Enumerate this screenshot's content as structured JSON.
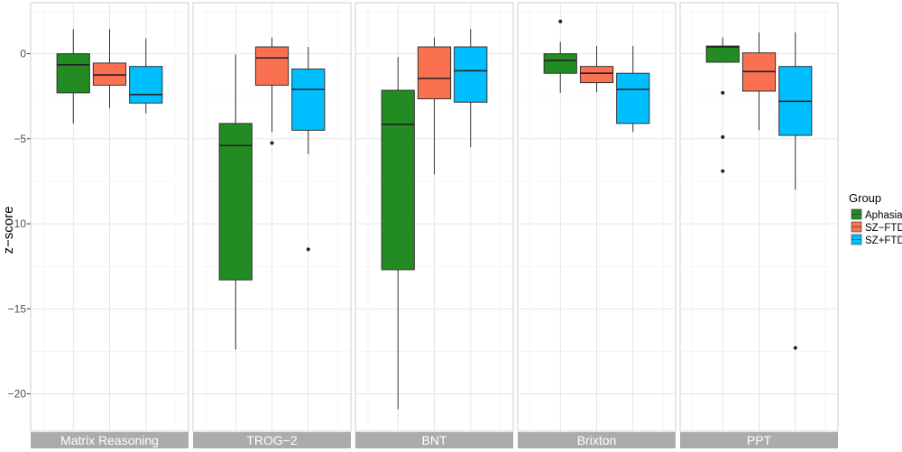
{
  "chart_data": {
    "type": "boxplot",
    "ylabel": "z−score",
    "ylim": [
      -22.2,
      3.0
    ],
    "yticks": [
      0,
      -5,
      -10,
      -15,
      -20
    ],
    "ytick_labels": [
      "0",
      "−5",
      "−10",
      "−15",
      "−20"
    ],
    "grid": true,
    "legend": {
      "title": "Group",
      "placement": "right",
      "entries": [
        {
          "name": "Aphasia",
          "color": "#228B22"
        },
        {
          "name": "SZ−FTD",
          "color": "#FA7152"
        },
        {
          "name": "SZ+FTD",
          "color": "#00BFFF"
        }
      ]
    },
    "panels": [
      {
        "label": "Matrix Reasoning",
        "boxes": [
          {
            "group": "Aphasia",
            "whisker_low": -4.1,
            "q1": -2.3,
            "median": -0.65,
            "q3": 0.0,
            "whisker_high": 1.45,
            "outliers": []
          },
          {
            "group": "SZ−FTD",
            "whisker_low": -3.2,
            "q1": -1.85,
            "median": -1.25,
            "q3": -0.55,
            "whisker_high": 1.45,
            "outliers": []
          },
          {
            "group": "SZ+FTD",
            "whisker_low": -3.5,
            "q1": -2.9,
            "median": -2.4,
            "q3": -0.75,
            "whisker_high": 0.9,
            "outliers": []
          }
        ]
      },
      {
        "label": "TROG−2",
        "boxes": [
          {
            "group": "Aphasia",
            "whisker_low": -17.4,
            "q1": -13.3,
            "median": -5.4,
            "q3": -4.1,
            "whisker_high": -0.05,
            "outliers": []
          },
          {
            "group": "SZ−FTD",
            "whisker_low": -4.6,
            "q1": -1.85,
            "median": -0.25,
            "q3": 0.4,
            "whisker_high": 0.95,
            "outliers": [
              -5.25
            ]
          },
          {
            "group": "SZ+FTD",
            "whisker_low": -5.9,
            "q1": -4.5,
            "median": -2.1,
            "q3": -0.9,
            "whisker_high": 0.4,
            "outliers": [
              -11.5
            ]
          }
        ]
      },
      {
        "label": "BNT",
        "boxes": [
          {
            "group": "Aphasia",
            "whisker_low": -20.9,
            "q1": -12.7,
            "median": -4.15,
            "q3": -2.15,
            "whisker_high": -0.2,
            "outliers": []
          },
          {
            "group": "SZ−FTD",
            "whisker_low": -7.1,
            "q1": -2.65,
            "median": -1.45,
            "q3": 0.4,
            "whisker_high": 0.95,
            "outliers": []
          },
          {
            "group": "SZ+FTD",
            "whisker_low": -5.5,
            "q1": -2.85,
            "median": -1.0,
            "q3": 0.4,
            "whisker_high": 1.45,
            "outliers": []
          }
        ]
      },
      {
        "label": "Brixton",
        "boxes": [
          {
            "group": "Aphasia",
            "whisker_low": -2.3,
            "q1": -1.15,
            "median": -0.4,
            "q3": 0.0,
            "whisker_high": 0.7,
            "outliers": [
              1.9
            ]
          },
          {
            "group": "SZ−FTD",
            "whisker_low": -2.25,
            "q1": -1.7,
            "median": -1.15,
            "q3": -0.75,
            "whisker_high": 0.45,
            "outliers": []
          },
          {
            "group": "SZ+FTD",
            "whisker_low": -4.6,
            "q1": -4.1,
            "median": -2.1,
            "q3": -1.15,
            "whisker_high": 0.45,
            "outliers": []
          }
        ]
      },
      {
        "label": "PPT",
        "boxes": [
          {
            "group": "Aphasia",
            "whisker_low": -0.5,
            "q1": -0.5,
            "median": 0.4,
            "q3": 0.45,
            "whisker_high": 0.95,
            "outliers": [
              -2.3,
              -4.9,
              -6.9
            ]
          },
          {
            "group": "SZ−FTD",
            "whisker_low": -4.5,
            "q1": -2.2,
            "median": -1.05,
            "q3": 0.05,
            "whisker_high": 1.25,
            "outliers": []
          },
          {
            "group": "SZ+FTD",
            "whisker_low": -8.0,
            "q1": -4.8,
            "median": -2.8,
            "q3": -0.75,
            "whisker_high": 1.25,
            "outliers": [
              -17.3
            ]
          }
        ]
      }
    ]
  }
}
